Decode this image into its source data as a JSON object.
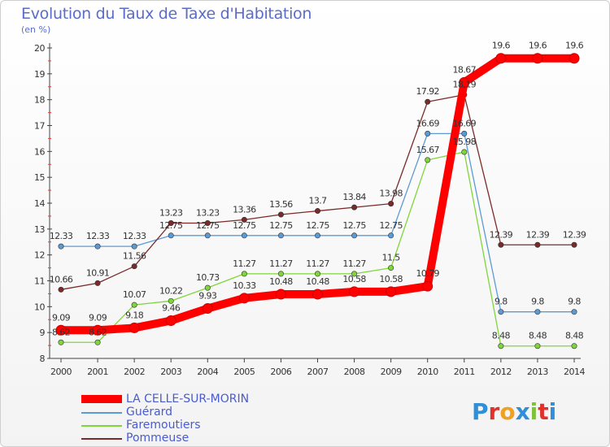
{
  "title": "Evolution du Taux de Taxe d'Habitation",
  "unit_label": "(en %)",
  "logo": "Proxiti",
  "colors": {
    "title": "#5a6cc8",
    "legend_text": "#4a5bd0"
  },
  "chart_data": {
    "type": "line",
    "title": "Evolution du Taux de Taxe d'Habitation",
    "ylabel": "(en %)",
    "xlabel": "",
    "x": [
      "2000",
      "2001",
      "2002",
      "2003",
      "2004",
      "2005",
      "2006",
      "2007",
      "2008",
      "2009",
      "2010",
      "2011",
      "2012",
      "2013",
      "2014"
    ],
    "ylim": [
      8,
      20
    ],
    "yticks": [
      8,
      9,
      10,
      11,
      12,
      13,
      14,
      15,
      16,
      17,
      18,
      19,
      20
    ],
    "grid": false,
    "legend_position": "bottom-left",
    "series": [
      {
        "name": "LA CELLE-SUR-MORIN",
        "color": "#ff0000",
        "values": [
          9.09,
          9.09,
          9.18,
          9.46,
          9.93,
          10.33,
          10.48,
          10.48,
          10.58,
          10.58,
          10.79,
          18.67,
          19.6,
          19.6,
          19.6
        ],
        "labels": [
          "9.09",
          "9.09",
          "9.18",
          "9.46",
          "9.93",
          "10.33",
          "10.48",
          "10.48",
          "10.58",
          "10.58",
          "10.79",
          "18.67",
          "19.6",
          "19.6",
          "19.6"
        ]
      },
      {
        "name": "Guérard",
        "color": "#5b9bd5",
        "values": [
          12.33,
          12.33,
          12.33,
          12.75,
          12.75,
          12.75,
          12.75,
          12.75,
          12.75,
          12.75,
          16.69,
          16.69,
          9.8,
          9.8,
          9.8
        ],
        "labels": [
          "12.33",
          "12.33",
          "12.33",
          "12.75",
          "12.75",
          "12.75",
          "12.75",
          "12.75",
          "12.75",
          "12.75",
          "16.69",
          "16.69",
          "9.8",
          "9.8",
          "9.8"
        ]
      },
      {
        "name": "Faremoutiers",
        "color": "#7fd63a",
        "values": [
          8.62,
          8.62,
          10.07,
          10.22,
          10.73,
          11.27,
          11.27,
          11.27,
          11.27,
          11.5,
          15.67,
          15.98,
          8.48,
          8.48,
          8.48
        ],
        "labels": [
          "8.62",
          "8.62",
          "10.07",
          "10.22",
          "10.73",
          "11.27",
          "11.27",
          "11.27",
          "11.27",
          "11.5",
          "15.67",
          "15.98",
          "8.48",
          "8.48",
          "8.48"
        ]
      },
      {
        "name": "Pommeuse",
        "color": "#7a2a2a",
        "values": [
          10.66,
          10.91,
          11.56,
          13.23,
          13.23,
          13.36,
          13.56,
          13.7,
          13.84,
          13.98,
          17.92,
          18.19,
          12.39,
          12.39,
          12.39
        ],
        "labels": [
          "10.66",
          "10.91",
          "11.56",
          "13.23",
          "13.23",
          "13.36",
          "13.56",
          "13.7",
          "13.84",
          "13.98",
          "17.92",
          "18.19",
          "12.39",
          "12.39",
          "12.39"
        ]
      }
    ]
  }
}
